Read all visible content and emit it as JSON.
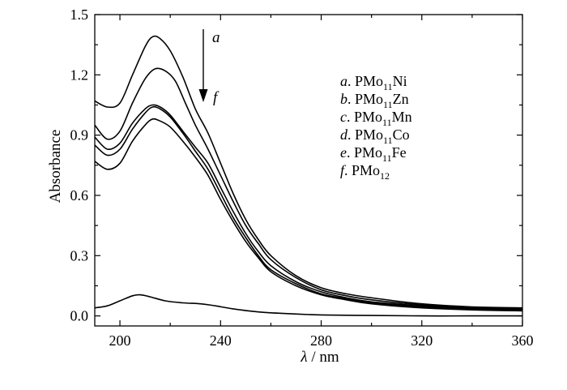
{
  "chart_data": {
    "type": "line",
    "xlabel": {
      "symbol": "λ",
      "unit": "nm"
    },
    "ylabel": "Absorbance",
    "xlim": [
      190,
      360
    ],
    "ylim": [
      -0.05,
      1.5
    ],
    "x_ticks": [
      200,
      240,
      280,
      320,
      360
    ],
    "y_ticks": [
      0.0,
      0.3,
      0.6,
      0.9,
      1.2,
      1.5
    ],
    "x_tick_labels": [
      "200",
      "240",
      "280",
      "320",
      "360"
    ],
    "y_tick_labels": [
      "0.0",
      "0.3",
      "0.6",
      "0.9",
      "1.2",
      "1.5"
    ],
    "annotation": {
      "top": "a",
      "bottom": "f"
    },
    "legend_position": "top-right",
    "series": [
      {
        "letter": "a",
        "base": "PMo",
        "sub": "11",
        "tail": "Ni",
        "points": [
          [
            190,
            1.07
          ],
          [
            195,
            1.04
          ],
          [
            200,
            1.06
          ],
          [
            205,
            1.2
          ],
          [
            210,
            1.34
          ],
          [
            213,
            1.39
          ],
          [
            216,
            1.38
          ],
          [
            220,
            1.32
          ],
          [
            225,
            1.19
          ],
          [
            230,
            1.03
          ],
          [
            235,
            0.91
          ],
          [
            240,
            0.76
          ],
          [
            245,
            0.61
          ],
          [
            250,
            0.48
          ],
          [
            255,
            0.38
          ],
          [
            260,
            0.3
          ],
          [
            270,
            0.2
          ],
          [
            280,
            0.14
          ],
          [
            290,
            0.11
          ],
          [
            300,
            0.09
          ],
          [
            320,
            0.06
          ],
          [
            340,
            0.045
          ],
          [
            360,
            0.04
          ]
        ]
      },
      {
        "letter": "b",
        "base": "PMo",
        "sub": "11",
        "tail": "Zn",
        "points": [
          [
            190,
            0.95
          ],
          [
            195,
            0.88
          ],
          [
            200,
            0.92
          ],
          [
            205,
            1.06
          ],
          [
            210,
            1.18
          ],
          [
            214,
            1.23
          ],
          [
            218,
            1.22
          ],
          [
            222,
            1.17
          ],
          [
            226,
            1.06
          ],
          [
            230,
            0.95
          ],
          [
            235,
            0.83
          ],
          [
            240,
            0.7
          ],
          [
            245,
            0.57
          ],
          [
            250,
            0.45
          ],
          [
            255,
            0.36
          ],
          [
            260,
            0.28
          ],
          [
            270,
            0.19
          ],
          [
            280,
            0.13
          ],
          [
            290,
            0.1
          ],
          [
            300,
            0.08
          ],
          [
            320,
            0.055
          ],
          [
            340,
            0.04
          ],
          [
            360,
            0.035
          ]
        ]
      },
      {
        "letter": "c",
        "base": "PMo",
        "sub": "11",
        "tail": "Mn",
        "points": [
          [
            190,
            0.89
          ],
          [
            195,
            0.83
          ],
          [
            200,
            0.86
          ],
          [
            205,
            0.96
          ],
          [
            210,
            1.03
          ],
          [
            213,
            1.05
          ],
          [
            216,
            1.04
          ],
          [
            220,
            1.0
          ],
          [
            225,
            0.92
          ],
          [
            230,
            0.84
          ],
          [
            235,
            0.76
          ],
          [
            240,
            0.64
          ],
          [
            245,
            0.52
          ],
          [
            250,
            0.41
          ],
          [
            255,
            0.32
          ],
          [
            260,
            0.25
          ],
          [
            270,
            0.17
          ],
          [
            280,
            0.12
          ],
          [
            290,
            0.09
          ],
          [
            300,
            0.07
          ],
          [
            320,
            0.05
          ],
          [
            340,
            0.035
          ],
          [
            360,
            0.03
          ]
        ]
      },
      {
        "letter": "d",
        "base": "PMo",
        "sub": "11",
        "tail": "Co",
        "points": [
          [
            190,
            0.85
          ],
          [
            195,
            0.8
          ],
          [
            200,
            0.83
          ],
          [
            205,
            0.93
          ],
          [
            210,
            1.01
          ],
          [
            213,
            1.04
          ],
          [
            216,
            1.03
          ],
          [
            220,
            0.99
          ],
          [
            225,
            0.91
          ],
          [
            230,
            0.82
          ],
          [
            235,
            0.73
          ],
          [
            240,
            0.61
          ],
          [
            245,
            0.49
          ],
          [
            250,
            0.39
          ],
          [
            255,
            0.3
          ],
          [
            260,
            0.23
          ],
          [
            270,
            0.16
          ],
          [
            280,
            0.11
          ],
          [
            290,
            0.085
          ],
          [
            300,
            0.065
          ],
          [
            320,
            0.045
          ],
          [
            340,
            0.033
          ],
          [
            360,
            0.028
          ]
        ]
      },
      {
        "letter": "e",
        "base": "PMo",
        "sub": "11",
        "tail": "Fe",
        "points": [
          [
            190,
            0.77
          ],
          [
            195,
            0.73
          ],
          [
            200,
            0.76
          ],
          [
            205,
            0.87
          ],
          [
            210,
            0.95
          ],
          [
            213,
            0.98
          ],
          [
            216,
            0.97
          ],
          [
            220,
            0.94
          ],
          [
            225,
            0.87
          ],
          [
            230,
            0.79
          ],
          [
            235,
            0.7
          ],
          [
            240,
            0.58
          ],
          [
            245,
            0.47
          ],
          [
            250,
            0.37
          ],
          [
            255,
            0.29
          ],
          [
            260,
            0.22
          ],
          [
            270,
            0.15
          ],
          [
            280,
            0.105
          ],
          [
            290,
            0.08
          ],
          [
            300,
            0.06
          ],
          [
            320,
            0.04
          ],
          [
            340,
            0.03
          ],
          [
            360,
            0.025
          ]
        ]
      },
      {
        "letter": "f",
        "base": "PMo",
        "sub": "12",
        "tail": "",
        "points": [
          [
            190,
            0.04
          ],
          [
            195,
            0.05
          ],
          [
            200,
            0.075
          ],
          [
            205,
            0.1
          ],
          [
            208,
            0.105
          ],
          [
            212,
            0.095
          ],
          [
            218,
            0.075
          ],
          [
            225,
            0.065
          ],
          [
            232,
            0.06
          ],
          [
            238,
            0.05
          ],
          [
            245,
            0.035
          ],
          [
            255,
            0.02
          ],
          [
            265,
            0.012
          ],
          [
            280,
            0.005
          ],
          [
            300,
            0.002
          ],
          [
            320,
            0.0
          ],
          [
            340,
            0.0
          ],
          [
            360,
            0.0
          ]
        ]
      }
    ]
  }
}
